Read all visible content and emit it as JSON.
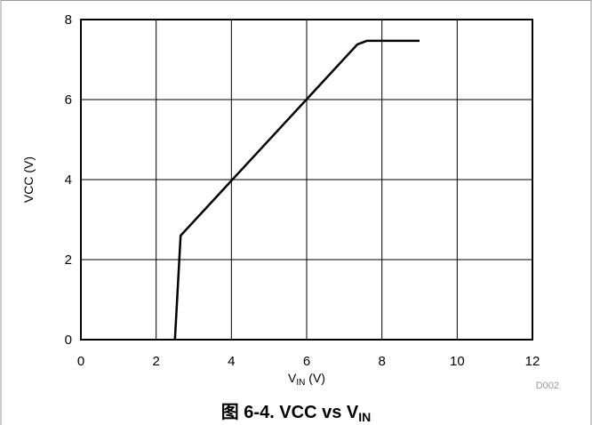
{
  "chart_data": {
    "type": "line",
    "title": "",
    "caption": {
      "prefix": "图 6-4. VCC vs V",
      "subscript": "IN"
    },
    "xlabel": {
      "main": "V",
      "subscript": "IN",
      "suffix": " (V)"
    },
    "ylabel": "VCC (V)",
    "xlim": [
      0,
      12
    ],
    "ylim": [
      0,
      8
    ],
    "xticks": [
      "0",
      "2",
      "4",
      "6",
      "8",
      "10",
      "12"
    ],
    "yticks": [
      "0",
      "2",
      "4",
      "6",
      "8"
    ],
    "grid": true,
    "watermark": "D002",
    "series": [
      {
        "x": [
          2.5,
          2.65,
          7.35,
          7.6,
          9.0
        ],
        "y": [
          0.0,
          2.6,
          7.38,
          7.47,
          7.47
        ]
      }
    ]
  }
}
